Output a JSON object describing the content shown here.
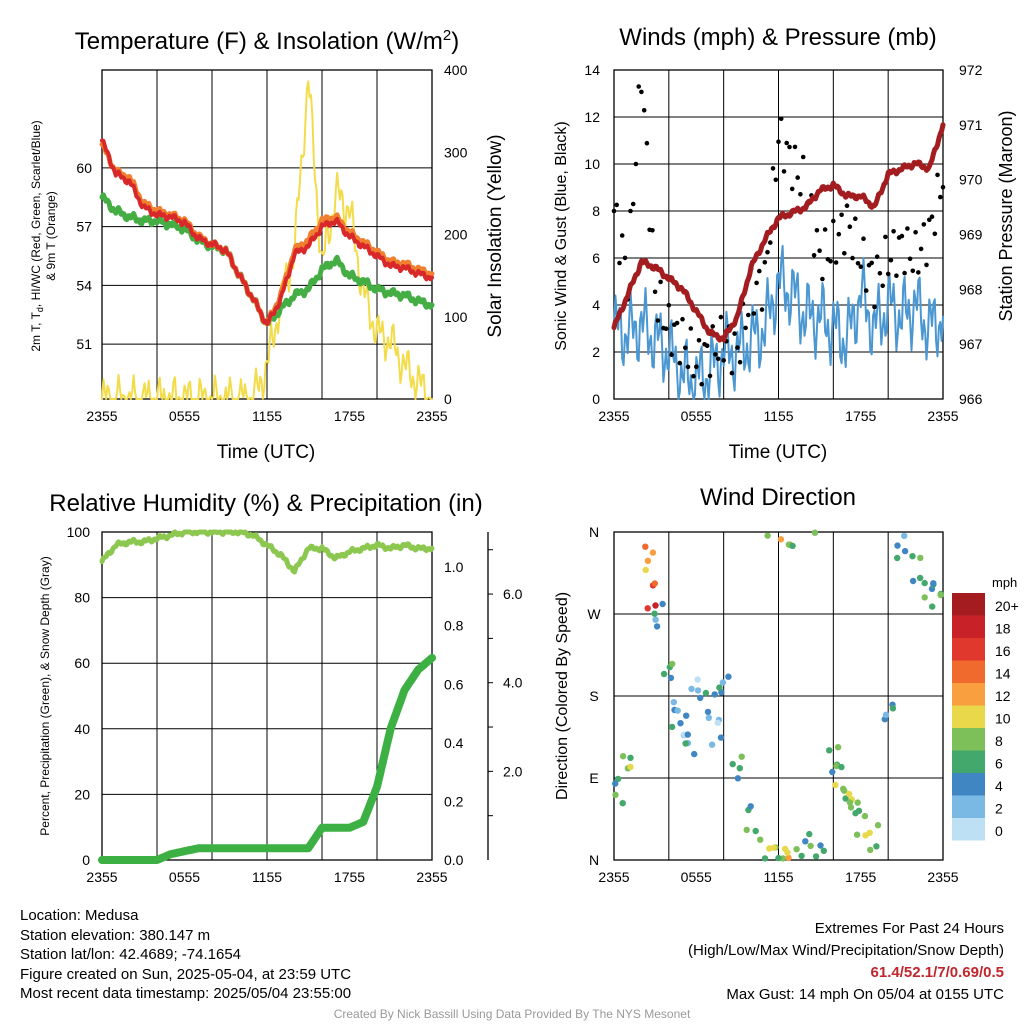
{
  "panels": {
    "temp": {
      "title": "Temperature (F) & Insolation (W/m",
      "title_sup": "2",
      "title_end": ")",
      "xlabel": "Time (UTC)",
      "ylabel_line1": "2m T, T",
      "ylabel_sub": "d",
      "ylabel_line1_end": ", HI/WC (Red, Green, Scarlet/Blue)",
      "ylabel_line2": "& 9m T (Orange)",
      "y2label": "Solar Insolation (Yellow)"
    },
    "wind": {
      "title": "Winds (mph) & Pressure (mb)",
      "xlabel": "Time (UTC)",
      "ylabel": "Sonic Wind & Gust (Blue, Black)",
      "y2label": "Station Pressure (Maroon)"
    },
    "rh": {
      "title": "Relative Humidity (%) & Precipitation (in)",
      "ylabel": "Percent, Precipitation (Green), & Snow Depth (Gray)"
    },
    "dir": {
      "title": "Wind Direction",
      "ylabel": "Direction (Colored By Speed)",
      "legend_title": "mph",
      "legend_labels": [
        "20+",
        "18",
        "16",
        "14",
        "12",
        "10",
        "8",
        "6",
        "4",
        "2",
        "0"
      ]
    }
  },
  "footer": {
    "location": "Location: Medusa",
    "elevation": "Station elevation: 380.147 m",
    "latlon": "Station lat/lon: 42.4689; -74.1654",
    "created": "Figure created on Sun, 2025-05-04, at 23:59 UTC",
    "recent": "Most recent data timestamp: 2025/05/04 23:55:00",
    "extremes_title": "Extremes For Past 24 Hours",
    "extremes_desc": "(High/Low/Max Wind/Precipitation/Snow Depth)",
    "extremes_values": "61.4/52.1/7/0.69/0.5",
    "max_gust": "Max Gust: 14 mph On 05/04 at 0155 UTC",
    "credit": "Created By Nick Bassill Using Data Provided By The NYS Mesonet"
  },
  "colors": {
    "temp": "#d8282a",
    "hi_wc": "#3a8fd0",
    "dewpoint": "#44ae44",
    "temp9m": "#f08030",
    "solar": "#f3dc4b",
    "wind": "#4b97d2",
    "gust": "#000000",
    "pressure": "#a31d20",
    "rh": "#8cc850",
    "precip": "#3cb043",
    "speed_scale": [
      "#a51c20",
      "#c82228",
      "#e0382c",
      "#f0692d",
      "#fa9f3f",
      "#e8d84a",
      "#7dc05a",
      "#43a86b",
      "#3f86c3",
      "#79b9e4",
      "#bde0f4"
    ]
  },
  "chart_data": [
    {
      "type": "line",
      "title": "Temperature (F) & Insolation (W/m2)",
      "xlabel": "Time (UTC)",
      "ylabel": "2m T, Td, HI/WC (Red, Green, Scarlet/Blue) & 9m T (Orange)",
      "y2label": "Solar Insolation (Yellow)",
      "x_ticks": [
        "2355",
        "0555",
        "1155",
        "1755",
        "2355"
      ],
      "ylim": [
        48.2,
        65.0
      ],
      "y_ticks": [
        51,
        54,
        57,
        60
      ],
      "y2lim": [
        0,
        400
      ],
      "y2_ticks": [
        0,
        100,
        200,
        300,
        400
      ],
      "x_hours": [
        0,
        1,
        2,
        3,
        4,
        5,
        6,
        7,
        8,
        9,
        10,
        11,
        12,
        13,
        14,
        15,
        16,
        17,
        18,
        19,
        20,
        21,
        22,
        23,
        24
      ],
      "series": [
        {
          "name": "2m T",
          "axis": "left",
          "values": [
            61.4,
            59.7,
            59.3,
            58.0,
            57.6,
            57.5,
            57.2,
            56.4,
            56.1,
            55.8,
            54.5,
            53.3,
            52.0,
            53.3,
            55.6,
            56.0,
            57.0,
            57.3,
            56.5,
            56.0,
            55.5,
            55.0,
            54.9,
            54.6,
            54.4
          ]
        },
        {
          "name": "9m T",
          "axis": "left",
          "values": [
            61.2,
            59.8,
            59.5,
            58.2,
            57.8,
            57.6,
            57.3,
            56.5,
            56.1,
            55.8,
            54.5,
            53.3,
            52.0,
            53.5,
            55.8,
            56.3,
            57.3,
            57.5,
            56.7,
            56.2,
            55.7,
            55.2,
            55.1,
            54.8,
            54.6
          ]
        },
        {
          "name": "Td",
          "axis": "left",
          "values": [
            58.5,
            57.8,
            57.5,
            57.3,
            57.3,
            57.1,
            56.9,
            56.3,
            56.0,
            55.8,
            54.5,
            53.3,
            52.0,
            52.8,
            53.5,
            53.8,
            54.8,
            55.3,
            54.5,
            54.2,
            53.8,
            53.6,
            53.5,
            53.2,
            53.0
          ]
        },
        {
          "name": "Solar",
          "axis": "right",
          "values": [
            0,
            0,
            0,
            0,
            0,
            0,
            0,
            0,
            0,
            0,
            0,
            0,
            40,
            120,
            180,
            390,
            160,
            250,
            230,
            130,
            80,
            70,
            40,
            20,
            0
          ]
        }
      ]
    },
    {
      "type": "line",
      "title": "Winds (mph) & Pressure (mb)",
      "xlabel": "Time (UTC)",
      "ylabel": "Sonic Wind & Gust (Blue, Black)",
      "y2label": "Station Pressure (Maroon)",
      "x_ticks": [
        "2355",
        "0555",
        "1155",
        "1755",
        "2355"
      ],
      "ylim": [
        0,
        14
      ],
      "y_ticks": [
        0,
        2,
        4,
        6,
        8,
        10,
        12,
        14
      ],
      "y2lim": [
        966,
        972
      ],
      "y2_ticks": [
        966,
        967,
        968,
        969,
        970,
        971,
        972
      ],
      "x_hours": [
        0,
        1,
        2,
        3,
        4,
        5,
        6,
        7,
        8,
        9,
        10,
        11,
        12,
        13,
        14,
        15,
        16,
        17,
        18,
        19,
        20,
        21,
        22,
        23,
        24
      ],
      "series": [
        {
          "name": "Sonic Wind",
          "axis": "left",
          "values": [
            3.0,
            2.8,
            3.2,
            2.5,
            2.0,
            1.0,
            0.8,
            1.2,
            2.0,
            2.0,
            2.5,
            3.0,
            5.0,
            4.5,
            3.5,
            3.5,
            3.0,
            2.5,
            4.5,
            3.0,
            4.0,
            3.5,
            4.0,
            3.0,
            3.5
          ]
        },
        {
          "name": "Gust",
          "axis": "left",
          "values": [
            8.0,
            5.2,
            14.0,
            4.5,
            3.0,
            2.5,
            1.5,
            2.0,
            2.5,
            2.0,
            4.5,
            5.0,
            11.2,
            10.0,
            9.0,
            6.0,
            6.5,
            7.5,
            6.0,
            5.0,
            6.0,
            6.5,
            6.0,
            7.0,
            9.5
          ]
        },
        {
          "name": "Pressure",
          "axis": "right",
          "values": [
            967.3,
            967.9,
            968.5,
            968.4,
            968.2,
            968.0,
            967.6,
            967.2,
            967.1,
            967.5,
            968.4,
            968.9,
            969.3,
            969.4,
            969.5,
            969.8,
            969.9,
            969.7,
            969.7,
            969.5,
            970.1,
            970.2,
            970.3,
            970.2,
            971.0
          ]
        }
      ]
    },
    {
      "type": "line",
      "title": "Relative Humidity (%) & Precipitation (in)",
      "ylabel": "Percent, Precipitation (Green), & Snow Depth (Gray)",
      "x_ticks": [
        "2355",
        "0555",
        "1155",
        "1755",
        "2355"
      ],
      "ylim": [
        0,
        100
      ],
      "y_ticks": [
        0,
        20,
        40,
        60,
        80,
        100
      ],
      "y2lim": [
        0,
        1.12
      ],
      "y2_ticks": [
        "0.0",
        "0.2",
        "0.4",
        "0.6",
        "0.8",
        "1.0"
      ],
      "y3_ticks": [
        "2.0",
        "4.0",
        "6.0"
      ],
      "x_hours": [
        0,
        1,
        2,
        3,
        4,
        5,
        6,
        7,
        8,
        9,
        10,
        11,
        12,
        13,
        14,
        15,
        16,
        17,
        18,
        19,
        20,
        21,
        22,
        23,
        24
      ],
      "series": [
        {
          "name": "RH",
          "axis": "left",
          "values": [
            91,
            96,
            97,
            97,
            98,
            99,
            100,
            100,
            100,
            100,
            100,
            99,
            96,
            93,
            88,
            95,
            95,
            92,
            94,
            95,
            96,
            95,
            96,
            95,
            95
          ]
        },
        {
          "name": "Precipitation",
          "axis": "right",
          "values": [
            0,
            0,
            0,
            0,
            0,
            0.02,
            0.03,
            0.04,
            0.04,
            0.04,
            0.04,
            0.04,
            0.04,
            0.04,
            0.04,
            0.04,
            0.11,
            0.11,
            0.11,
            0.13,
            0.25,
            0.45,
            0.58,
            0.65,
            0.69
          ]
        }
      ]
    },
    {
      "type": "scatter",
      "title": "Wind Direction",
      "ylabel": "Direction (Colored By Speed)",
      "x_ticks": [
        "2355",
        "0555",
        "1155",
        "1755",
        "2355"
      ],
      "y_ticks": [
        "N",
        "E",
        "S",
        "W",
        "N"
      ],
      "ylim": [
        0,
        360
      ],
      "legend_title": "mph",
      "legend": [
        "20+",
        "18",
        "16",
        "14",
        "12",
        "10",
        "8",
        "6",
        "4",
        "2",
        "0"
      ],
      "points": [
        [
          0.3,
          75,
          3
        ],
        [
          1.0,
          110,
          4
        ],
        [
          2.5,
          330,
          6
        ],
        [
          2.8,
          290,
          8
        ],
        [
          3.2,
          270,
          2
        ],
        [
          4.0,
          205,
          3
        ],
        [
          4.5,
          160,
          2
        ],
        [
          5.0,
          150,
          1
        ],
        [
          5.5,
          125,
          2
        ],
        [
          6.0,
          190,
          1
        ],
        [
          7.0,
          170,
          2
        ],
        [
          7.5,
          140,
          1
        ],
        [
          8.0,
          195,
          2
        ],
        [
          9.0,
          100,
          3
        ],
        [
          10.0,
          45,
          3
        ],
        [
          11.0,
          10,
          4
        ],
        [
          12.0,
          5,
          4
        ],
        [
          12.5,
          360,
          6
        ],
        [
          13.0,
          358,
          4
        ],
        [
          14.0,
          15,
          3
        ],
        [
          15.0,
          10,
          3
        ],
        [
          16.0,
          110,
          3
        ],
        [
          16.5,
          90,
          4
        ],
        [
          17.0,
          70,
          4
        ],
        [
          17.5,
          60,
          4
        ],
        [
          18.0,
          40,
          4
        ],
        [
          19.0,
          25,
          4
        ],
        [
          20.0,
          160,
          2
        ],
        [
          21.0,
          345,
          2
        ],
        [
          22.0,
          320,
          3
        ],
        [
          23.0,
          290,
          3
        ],
        [
          23.5,
          300,
          3
        ]
      ]
    }
  ]
}
